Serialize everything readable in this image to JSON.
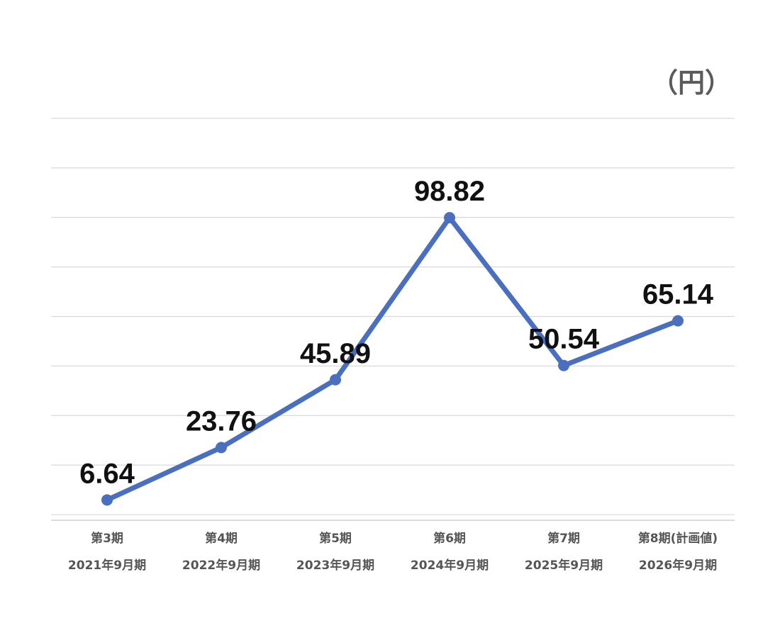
{
  "unit_label": "（円）",
  "chart_data": {
    "type": "line",
    "categories": [
      [
        "第3期",
        "2021年9月期"
      ],
      [
        "第4期",
        "2022年9月期"
      ],
      [
        "第5期",
        "2023年9月期"
      ],
      [
        "第6期",
        "2024年9月期"
      ],
      [
        "第7期",
        "2025年9月期"
      ],
      [
        "第8期(計画値)",
        "2026年9月期"
      ]
    ],
    "series": [
      {
        "values": [
          6.64,
          23.76,
          45.89,
          98.82,
          50.54,
          65.14
        ],
        "color": "#4a6fbf"
      }
    ],
    "data_labels": [
      "6.64",
      "23.76",
      "45.89",
      "98.82",
      "50.54",
      "65.14"
    ],
    "ylim": [
      0,
      131.25
    ],
    "y_gridlines": 9,
    "grid": true,
    "legend": "none"
  }
}
